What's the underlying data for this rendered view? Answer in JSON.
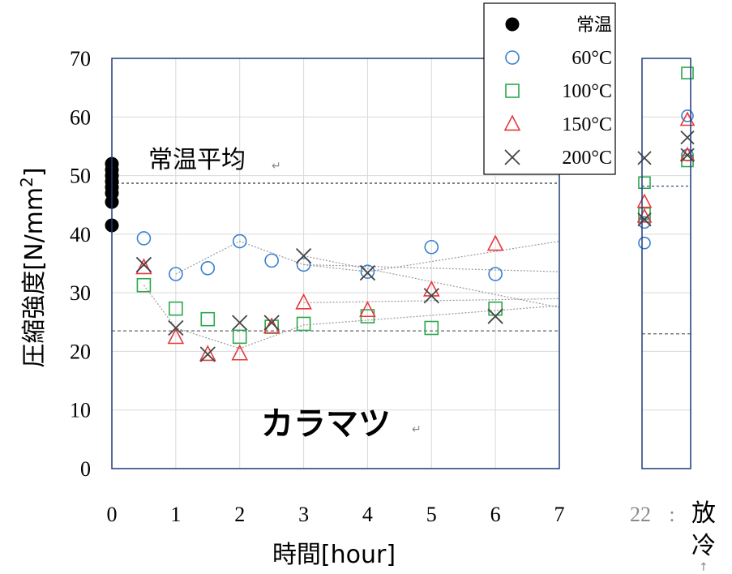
{
  "chart_data": {
    "type": "scatter",
    "ylabel": "圧縮強度[N/mm",
    "ylabel_sup": "2",
    "ylabel_end": "]",
    "xlabel": "時間[hour]",
    "ylim": [
      0,
      70
    ],
    "xlim": [
      0,
      7
    ],
    "yticks": [
      "0",
      "10",
      "20",
      "30",
      "40",
      "50",
      "60",
      "70"
    ],
    "xticks": [
      "0",
      "1",
      "2",
      "3",
      "4",
      "5",
      "6",
      "7"
    ],
    "extra_xtick": "22",
    "extra_xtick_sep": ":",
    "side_label": [
      "放",
      "冷"
    ],
    "annotation_avg": "常温平均",
    "annotation_species": "カラマツ",
    "avg_line_value": 48.7,
    "lower_line_value": 23.5,
    "legend": [
      "常温",
      "60°C",
      "100°C",
      "150°C",
      "200°C"
    ],
    "colors": {
      "常温": "#000000",
      "60°C": "#3a7fd1",
      "100°C": "#2aa84a",
      "150°C": "#e8383b",
      "200°C": "#444444"
    },
    "room_temp_points": [
      41.5,
      45.5,
      47,
      48,
      49,
      50,
      51,
      52
    ],
    "series": [
      {
        "name": "60°C",
        "marker": "circle",
        "x": [
          0.5,
          1,
          1.5,
          2,
          2.5,
          3,
          4,
          5,
          6
        ],
        "y": [
          39.3,
          33.2,
          34.2,
          38.8,
          35.5,
          34.8,
          33.6,
          37.8,
          33.2
        ],
        "cooling": [
          38.5,
          42,
          53.5,
          60.2
        ]
      },
      {
        "name": "100°C",
        "marker": "square",
        "x": [
          0.5,
          1,
          1.5,
          2,
          2.5,
          3,
          4,
          5,
          6
        ],
        "y": [
          31.3,
          27.3,
          25.5,
          22.5,
          24.2,
          24.7,
          26,
          24,
          27.3
        ],
        "cooling": [
          43.5,
          48.8,
          52.5,
          67.5
        ]
      },
      {
        "name": "150°C",
        "marker": "triangle",
        "x": [
          0.5,
          1,
          1.5,
          2,
          2.5,
          3,
          4,
          5,
          6
        ],
        "y": [
          34.3,
          22.4,
          19.5,
          19.6,
          24.2,
          28.3,
          27,
          30.5,
          38.3
        ],
        "cooling": [
          43,
          45.5,
          53.5,
          59.5
        ]
      },
      {
        "name": "200°C",
        "marker": "cross",
        "x": [
          0.5,
          1,
          1.5,
          2,
          2.5,
          3,
          4,
          5,
          6
        ],
        "y": [
          34.8,
          24,
          19.5,
          24.9,
          24.9,
          36.3,
          33.4,
          29.5,
          26
        ],
        "cooling": [
          42.5,
          53,
          56.5,
          53.5
        ]
      }
    ],
    "trend_lines": [
      {
        "x": [
          3,
          7
        ],
        "y": [
          36.3,
          27.5
        ]
      },
      {
        "x": [
          0.5,
          1,
          2,
          3,
          7
        ],
        "y": [
          31.3,
          24,
          20.5,
          24.5,
          27.8
        ]
      },
      {
        "x": [
          3,
          7
        ],
        "y": [
          28.3,
          29.0
        ]
      },
      {
        "x": [
          1,
          2,
          3,
          7
        ],
        "y": [
          33.2,
          38.8,
          34.8,
          33.6
        ]
      },
      {
        "x": [
          3,
          4,
          7
        ],
        "y": [
          34.8,
          33.6,
          38.8
        ]
      }
    ]
  }
}
